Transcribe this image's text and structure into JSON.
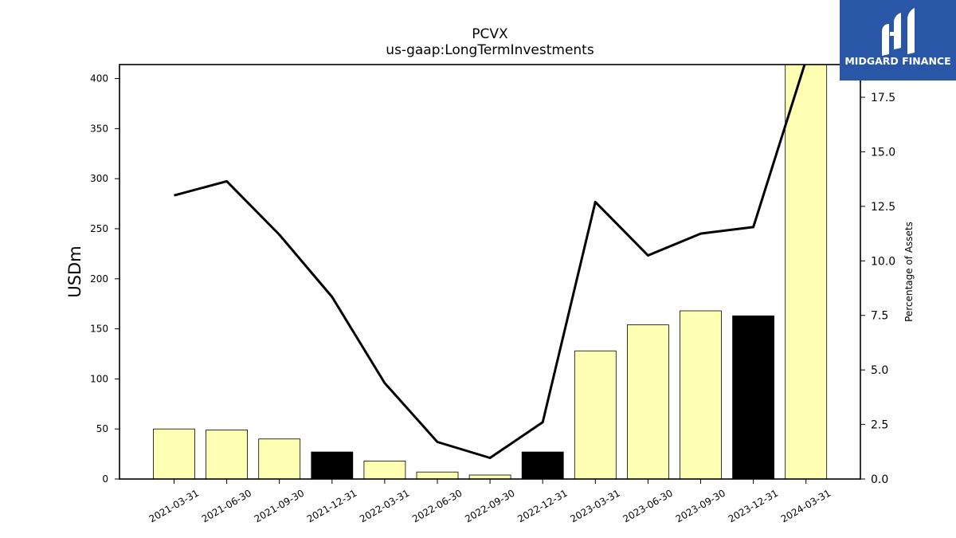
{
  "chart_data": {
    "type": "bar",
    "title": "PCVX",
    "subtitle": "us-gaap:LongTermInvestments",
    "ylabel": "USDm",
    "y2label": "Percentage of Assets",
    "ylim": [
      0,
      414
    ],
    "y2lim": [
      0,
      19.0
    ],
    "yticks": [
      "0",
      "50",
      "100",
      "150",
      "200",
      "250",
      "300",
      "350",
      "400"
    ],
    "y2ticks": [
      "0.0",
      "2.5",
      "5.0",
      "7.5",
      "10.0",
      "12.5",
      "15.0",
      "17.5"
    ],
    "categories": [
      "2021-03-31",
      "2021-06-30",
      "2021-09-30",
      "2021-12-31",
      "2022-03-31",
      "2022-06-30",
      "2022-09-30",
      "2022-12-31",
      "2023-03-31",
      "2023-06-30",
      "2023-09-30",
      "2023-12-31",
      "2024-03-31"
    ],
    "series": [
      {
        "type": "bar",
        "values": [
          50,
          49,
          40,
          27,
          18,
          7,
          4,
          27,
          128,
          154,
          168,
          163,
          420
        ],
        "colors": [
          "#ffffb3",
          "#ffffb3",
          "#ffffb3",
          "#000000",
          "#ffffb3",
          "#ffffb3",
          "#ffffb3",
          "#000000",
          "#ffffb3",
          "#ffffb3",
          "#ffffb3",
          "#000000",
          "#ffffb3"
        ]
      },
      {
        "type": "line",
        "axis": "right",
        "color": "#000000",
        "values": [
          13.0,
          13.65,
          11.2,
          8.35,
          4.4,
          1.7,
          0.97,
          2.6,
          12.7,
          10.25,
          11.25,
          11.55,
          19.2
        ]
      }
    ],
    "grid": false,
    "legend": "none"
  },
  "logo": {
    "text": "MIDGARD FINANCE",
    "background": "#2a56a8"
  }
}
